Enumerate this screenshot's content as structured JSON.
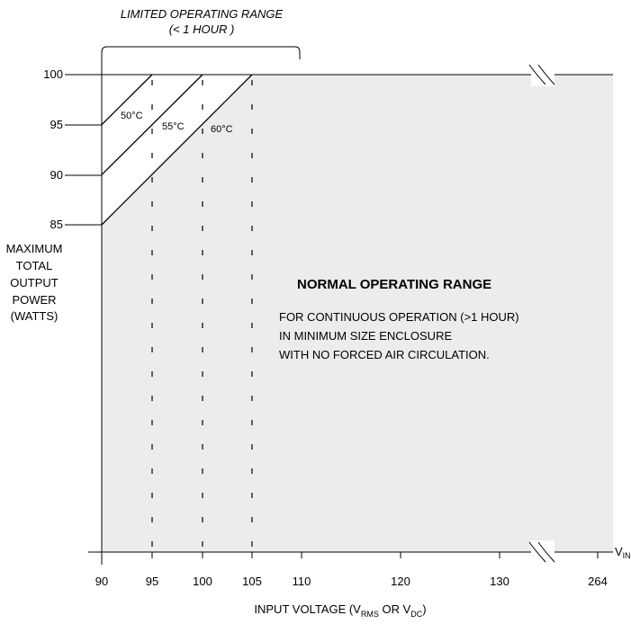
{
  "chart_data": {
    "type": "area",
    "title": "",
    "xlabel": "",
    "x_ticks": [
      "90",
      "95",
      "100",
      "105",
      "110",
      "120",
      "130",
      "264"
    ],
    "y_ticks": [
      "100",
      "95",
      "90",
      "85"
    ],
    "ylabel_lines": [
      "MAXIMUM",
      "TOTAL",
      "OUTPUT",
      "POWER",
      "(WATTS)"
    ],
    "xlabel_parts": {
      "prefix": "INPUT VOLTAGE (V",
      "sub1": "RMS",
      "middle": " OR V",
      "sub2": "DC",
      "suffix": ")"
    },
    "x_axis_end_label": {
      "main": "V",
      "sub": "IN"
    },
    "limited_range_label": [
      "LIMITED OPERATING RANGE",
      "(< 1 HOUR )"
    ],
    "normal_range": {
      "title": "NORMAL OPERATING RANGE",
      "lines": [
        "FOR CONTINUOUS OPERATION (>1 HOUR)",
        "IN MINIMUM SIZE ENCLOSURE",
        "WITH NO FORCED AIR CIRCULATION."
      ]
    },
    "series": [
      {
        "name": "50°C",
        "points": [
          {
            "x": 90,
            "y": 95
          },
          {
            "x": 95,
            "y": 100
          }
        ]
      },
      {
        "name": "55°C",
        "points": [
          {
            "x": 90,
            "y": 90
          },
          {
            "x": 100,
            "y": 100
          }
        ]
      },
      {
        "name": "60°C",
        "points": [
          {
            "x": 90,
            "y": 85
          },
          {
            "x": 105,
            "y": 100
          }
        ]
      }
    ],
    "xlim": [
      90,
      264
    ],
    "ylim": [
      0,
      100
    ],
    "axis_break": true,
    "colors": {
      "normal_fill": "#ececec",
      "line": "#000000"
    }
  }
}
